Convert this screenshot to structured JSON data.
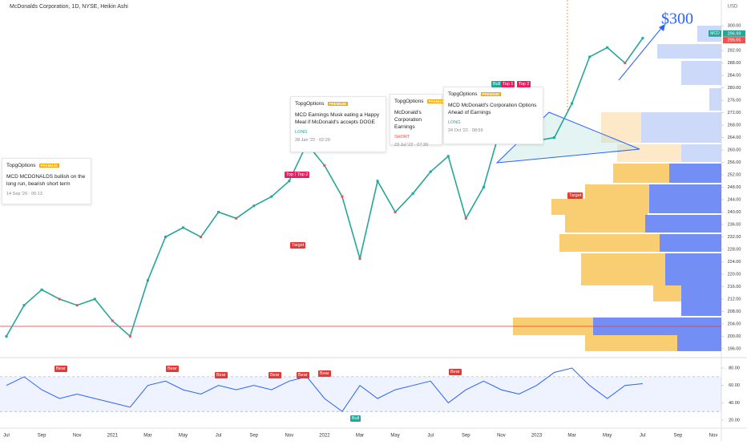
{
  "chart_data": [
    {
      "type": "line",
      "title": "McDonalds Corporation, 1D, NYSE, Heikin Ashi",
      "currency": "USD",
      "symbol": "MCD",
      "categories": [
        "Jul",
        null,
        "Sep",
        null,
        "Nov",
        null,
        "2021",
        null,
        "Mar",
        null,
        "May",
        null,
        "Jul",
        null,
        "Sep",
        null,
        "Nov",
        null,
        "2022",
        null,
        "Mar",
        null,
        "May",
        null,
        "Jul",
        null,
        "Sep",
        null,
        "Nov",
        null,
        "2023",
        null,
        "Mar",
        null,
        "May",
        null,
        "Jul",
        null,
        "Sep",
        null,
        "Nov"
      ],
      "values": [
        200,
        210,
        215,
        212,
        210,
        212,
        205,
        200,
        218,
        232,
        235,
        232,
        240,
        238,
        242,
        245,
        250,
        262,
        255,
        245,
        225,
        250,
        240,
        246,
        253,
        258,
        238,
        248,
        268,
        265,
        263,
        264,
        275,
        290,
        293,
        288,
        296,
        null,
        null,
        null,
        null
      ],
      "color": "#26a69a",
      "price_labels": [
        296.99,
        296.65
      ],
      "target_label": "$300",
      "ylim": [
        193.4,
        308.3
      ],
      "yticks": [
        {
          "value": 196,
          "label": "196.00"
        },
        {
          "value": 200,
          "label": "200.00"
        },
        {
          "value": 204,
          "label": "204.00"
        },
        {
          "value": 208,
          "label": "208.00"
        },
        {
          "value": 212,
          "label": "212.00"
        },
        {
          "value": 216,
          "label": "216.00"
        },
        {
          "value": 220,
          "label": "220.00"
        },
        {
          "value": 224,
          "label": "224.00"
        },
        {
          "value": 228,
          "label": "228.00"
        },
        {
          "value": 232,
          "label": "232.00"
        },
        {
          "value": 236,
          "label": "236.00"
        },
        {
          "value": 240,
          "label": "240.00"
        },
        {
          "value": 244,
          "label": "244.00"
        },
        {
          "value": 248,
          "label": "248.00"
        },
        {
          "value": 252,
          "label": "252.00"
        },
        {
          "value": 256,
          "label": "256.00"
        },
        {
          "value": 260,
          "label": "260.00"
        },
        {
          "value": 264,
          "label": "264.00"
        },
        {
          "value": 268,
          "label": "268.00"
        },
        {
          "value": 272,
          "label": "272.00"
        },
        {
          "value": 276,
          "label": "276.00"
        },
        {
          "value": 280,
          "label": "280.00"
        },
        {
          "value": 284,
          "label": "284.00"
        },
        {
          "value": 288,
          "label": "288.00"
        },
        {
          "value": 292,
          "label": "292.00"
        },
        {
          "value": 300,
          "label": "300.00"
        }
      ]
    },
    {
      "type": "line",
      "values": [
        60,
        70,
        55,
        45,
        50,
        45,
        40,
        35,
        60,
        65,
        55,
        50,
        60,
        55,
        60,
        55,
        65,
        70,
        45,
        30,
        60,
        45,
        55,
        60,
        65,
        40,
        55,
        65,
        55,
        50,
        60,
        75,
        80,
        60,
        45,
        60,
        62,
        null,
        null,
        null,
        null
      ],
      "color": "#2962ff",
      "band": [
        30,
        70
      ],
      "ylim": [
        14.5,
        90.2
      ],
      "yticks": [
        {
          "value": 80,
          "label": "80.00"
        },
        {
          "value": 60,
          "label": "60.00"
        },
        {
          "value": 40,
          "label": "40.00"
        },
        {
          "value": 20,
          "label": "20.00"
        }
      ]
    }
  ],
  "annotations": [
    {
      "brand": "TopgOptions",
      "badge": "PREMIUM",
      "text": "MCD MCDONALDS bullish on the long run, bearish short term",
      "time": "14 Sep '20 · 06:13"
    },
    {
      "brand": "TopgOptions",
      "badge": "PREMIUM",
      "text": "MCD Earnings Musk eating a Happy Meal if McDonald's accepts DOGE",
      "direction": "LONG",
      "time": "28 Jan '22 · 02:29"
    },
    {
      "brand": "TopgOptions",
      "badge": "PREMIUM",
      "text": "McDonald's Corporation Earnings",
      "direction": "SHORT",
      "time": "23 Jul '22 · 07:39"
    },
    {
      "brand": "TopgOptions",
      "badge": "PREMIUM",
      "text": "MCD McDonald's Corporation Options Ahead of Earnings",
      "direction": "LONG",
      "time": "24 Oct '22 · 08:59"
    }
  ],
  "markers": [
    "Top 1",
    "Top 2",
    "Target",
    "Bull",
    "Top 1",
    "Top 2",
    "Target",
    "Bear",
    "Bear",
    "Bear",
    "Bear",
    "Bear",
    "Bear",
    "Bear",
    "Bull"
  ]
}
